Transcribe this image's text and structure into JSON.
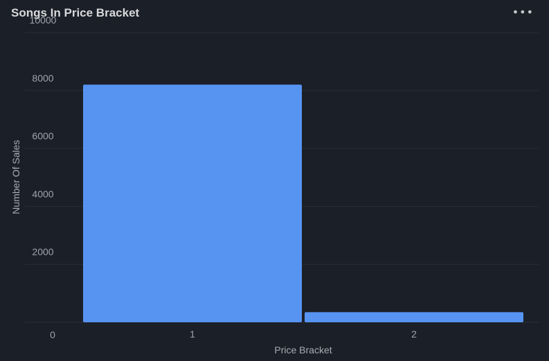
{
  "panel": {
    "title": "Songs In Price Bracket",
    "menu_icon": "ellipsis-icon"
  },
  "chart_data": {
    "type": "bar",
    "title": "Songs In Price Bracket",
    "xlabel": "Price Bracket",
    "ylabel": "Number Of Sales",
    "categories": [
      "1",
      "2"
    ],
    "values": [
      8200,
      350
    ],
    "ylim": [
      0,
      10000
    ],
    "yticks": [
      0,
      2000,
      4000,
      6000,
      8000,
      10000
    ],
    "grid": true,
    "bar_color": "#5794f2",
    "background": "#1b1f27"
  }
}
